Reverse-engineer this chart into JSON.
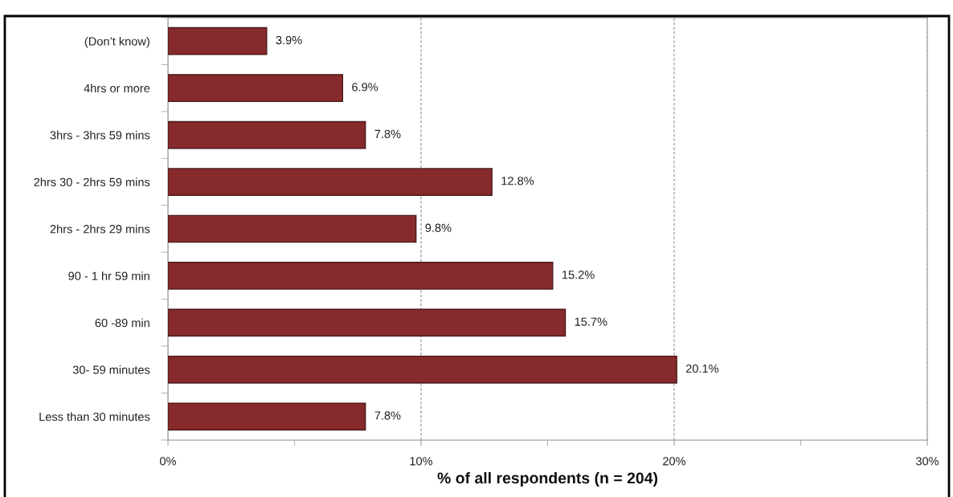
{
  "chart_data": {
    "type": "bar",
    "orientation": "horizontal",
    "categories": [
      "(Don’t know)",
      "4hrs or more",
      "3hrs - 3hrs 59 mins",
      "2hrs 30 - 2hrs 59 mins",
      "2hrs - 2hrs 29 mins",
      "90 - 1 hr 59 min",
      "60 -89 min",
      "30- 59 minutes",
      "Less than 30 minutes"
    ],
    "values": [
      3.9,
      6.9,
      7.8,
      12.8,
      9.8,
      15.2,
      15.7,
      20.1,
      7.8
    ],
    "value_labels": [
      "3.9%",
      "6.9%",
      "7.8%",
      "12.8%",
      "9.8%",
      "15.2%",
      "15.7%",
      "20.1%",
      "7.8%"
    ],
    "color": "#862a2b",
    "xlabel": "% of all respondents (n = 204)",
    "xlim": [
      0,
      30
    ],
    "xticks": [
      {
        "value": 0,
        "label": "0%"
      },
      {
        "value": 5,
        "label": null
      },
      {
        "value": 10,
        "label": "10%"
      },
      {
        "value": 15,
        "label": null
      },
      {
        "value": 20,
        "label": "20%"
      },
      {
        "value": 25,
        "label": null
      },
      {
        "value": 30,
        "label": "30%"
      }
    ],
    "grid": "x"
  }
}
